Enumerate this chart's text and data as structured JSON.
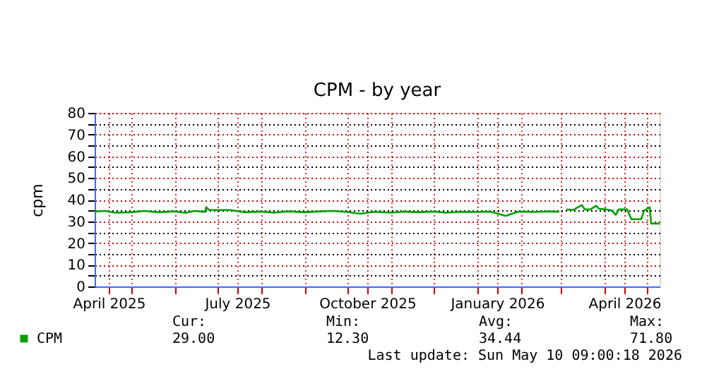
{
  "chart_data": {
    "type": "line",
    "title": "CPM - by year",
    "ylabel": "cpm",
    "xlim": [
      "2025-04-05",
      "2026-05-10"
    ],
    "xticks": [
      {
        "value": "2025-04-15",
        "label": "April 2025"
      },
      {
        "value": "2025-05-01",
        "label": null
      },
      {
        "value": "2025-06-01",
        "label": null
      },
      {
        "value": "2025-07-01",
        "label": null
      },
      {
        "value": "2025-07-15",
        "label": "July 2025"
      },
      {
        "value": "2025-08-01",
        "label": null
      },
      {
        "value": "2025-09-01",
        "label": null
      },
      {
        "value": "2025-10-01",
        "label": null
      },
      {
        "value": "2025-10-15",
        "label": "October 2025"
      },
      {
        "value": "2025-11-01",
        "label": null
      },
      {
        "value": "2025-12-01",
        "label": null
      },
      {
        "value": "2026-01-01",
        "label": null
      },
      {
        "value": "2026-01-15",
        "label": "January 2026"
      },
      {
        "value": "2026-02-01",
        "label": null
      },
      {
        "value": "2026-03-01",
        "label": null
      },
      {
        "value": "2026-04-01",
        "label": null
      },
      {
        "value": "2026-04-15",
        "label": "April 2026"
      },
      {
        "value": "2026-05-01",
        "label": null
      }
    ],
    "ylim": [
      0,
      80
    ],
    "yticks": [
      0,
      {
        "value": 5,
        "label": null
      },
      10,
      {
        "value": 15,
        "label": null
      },
      20,
      {
        "value": 25,
        "label": null
      },
      30,
      {
        "value": 35,
        "label": null
      },
      40,
      {
        "value": 45,
        "label": null
      },
      50,
      {
        "value": 55,
        "label": null
      },
      60,
      {
        "value": 65,
        "label": null
      },
      70,
      {
        "value": 75,
        "label": null
      },
      80
    ],
    "grid": true,
    "legend": "bottom left",
    "x": [
      "2025-04-05",
      "2025-04-12",
      "2025-04-20",
      "2025-05-01",
      "2025-05-10",
      "2025-05-20",
      "2025-06-01",
      "2025-06-08",
      "2025-06-15",
      "2025-06-22",
      "2025-06-23",
      "2025-06-25",
      "2025-07-10",
      "2025-07-20",
      "2025-08-01",
      "2025-08-10",
      "2025-08-20",
      "2025-09-01",
      "2025-09-10",
      "2025-09-20",
      "2025-10-01",
      "2025-10-10",
      "2025-10-20",
      "2025-11-01",
      "2025-11-10",
      "2025-11-20",
      "2025-12-01",
      "2025-12-10",
      "2025-12-20",
      "2026-01-01",
      "2026-01-10",
      "2026-01-21",
      "2026-01-30",
      "2026-02-10",
      "2026-02-20",
      "2026-02-28",
      "2026-03-02",
      "2026-03-05",
      "2026-03-10",
      "2026-03-16",
      "2026-03-18",
      "2026-03-22",
      "2026-03-26",
      "2026-03-28",
      "2026-04-02",
      "2026-04-06",
      "2026-04-09",
      "2026-04-11",
      "2026-04-17",
      "2026-04-20",
      "2026-04-27",
      "2026-04-29",
      "2026-05-02",
      "2026-05-03",
      "2026-05-04",
      "2026-05-10"
    ],
    "series": [
      {
        "name": "CPM",
        "color": "#00a000",
        "values": [
          34.5,
          34.8,
          34.0,
          34.2,
          34.8,
          34.2,
          34.6,
          33.9,
          34.8,
          34.3,
          36.5,
          35.3,
          35.2,
          34.2,
          34.5,
          34.0,
          34.6,
          34.2,
          34.5,
          34.8,
          34.3,
          33.5,
          34.4,
          34.0,
          34.5,
          34.2,
          34.5,
          34.0,
          34.4,
          34.3,
          34.5,
          32.5,
          34.5,
          34.3,
          34.6,
          34.4,
          null,
          35.5,
          35.3,
          37.5,
          35.5,
          35.5,
          37.2,
          35.8,
          35.5,
          35.0,
          33.0,
          35.5,
          35.5,
          31.0,
          31.0,
          35.0,
          36.0,
          36.5,
          29.0,
          29.0
        ]
      }
    ],
    "annotations": [
      "Cur:",
      "Min:",
      "Avg:",
      "Max:",
      "29.00",
      "12.30",
      "34.44",
      "71.80",
      "Last update: Sun May 10 09:00:18 2026"
    ]
  }
}
